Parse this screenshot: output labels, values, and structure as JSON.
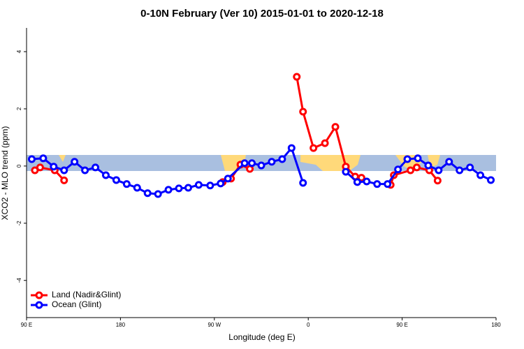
{
  "chart_data": {
    "type": "line",
    "title": "0-10N February (Ver 10)   2015-01-01 to 2020-12-18",
    "xlabel": "Longitude (deg E)",
    "ylabel": "XCO2 - MLO trend (ppm)",
    "xlim": [
      90,
      540
    ],
    "ylim": [
      -5.3,
      4.83
    ],
    "xticks": [
      {
        "value": 90,
        "label": "90 E"
      },
      180,
      {
        "value": 270,
        "label": "90 W"
      },
      {
        "value": 360,
        "label": "0"
      },
      {
        "value": 450,
        "label": "90 E"
      },
      {
        "value": 540,
        "label": "180"
      }
    ],
    "yticks": [
      -4,
      -2,
      0,
      2,
      4
    ],
    "legend": "bottom-left",
    "series": [
      {
        "name": "Land (Nadir&Glint)",
        "color": "#ff0000",
        "x": [
          98,
          103,
          117,
          126,
          null,
          278,
          286,
          295,
          304,
          null,
          349,
          355,
          365,
          376,
          386,
          396,
          405,
          411,
          null,
          439,
          442,
          458,
          464,
          476,
          484
        ],
        "values": [
          -0.15,
          -0.05,
          -0.15,
          -0.5,
          null,
          -0.56,
          -0.44,
          0.05,
          -0.1,
          null,
          3.12,
          1.9,
          0.63,
          0.8,
          1.37,
          -0.02,
          -0.37,
          -0.41,
          null,
          -0.66,
          -0.32,
          -0.15,
          -0.05,
          -0.15,
          -0.51
        ]
      },
      {
        "name": "Ocean (Glint)",
        "color": "#0000ff",
        "x": [
          95,
          106,
          116,
          126,
          136,
          146,
          156,
          166,
          176,
          186,
          196,
          206,
          216,
          226,
          236,
          245,
          255,
          266,
          276,
          283,
          299,
          306,
          315,
          325,
          335,
          344,
          355,
          null,
          396,
          407,
          416,
          426,
          436,
          446,
          455,
          465,
          475,
          485,
          495,
          505,
          515,
          525,
          535
        ],
        "values": [
          0.24,
          0.27,
          -0.02,
          -0.15,
          0.15,
          -0.15,
          -0.05,
          -0.32,
          -0.49,
          -0.63,
          -0.76,
          -0.95,
          -0.98,
          -0.83,
          -0.78,
          -0.76,
          -0.66,
          -0.68,
          -0.61,
          -0.44,
          0.1,
          0.1,
          0.02,
          0.15,
          0.24,
          0.63,
          -0.59,
          null,
          -0.2,
          -0.56,
          -0.54,
          -0.63,
          -0.63,
          -0.12,
          0.24,
          0.27,
          0.02,
          -0.15,
          0.15,
          -0.15,
          -0.05,
          -0.32,
          -0.49
        ]
      }
    ]
  }
}
